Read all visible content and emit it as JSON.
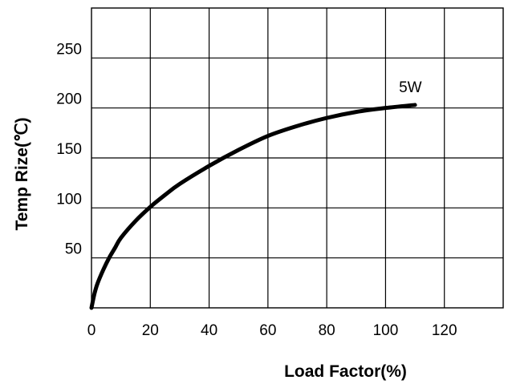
{
  "chart_data": {
    "type": "line",
    "title": "",
    "xlabel": "Load Factor(%)",
    "ylabel": "Temp Rize(℃)",
    "xlim": [
      0,
      140
    ],
    "ylim": [
      0,
      300
    ],
    "grid": true,
    "x_ticks": [
      0,
      20,
      40,
      60,
      80,
      100,
      120
    ],
    "x_tick_labels": [
      "0",
      "20",
      "40",
      "60",
      "80",
      "100",
      "120"
    ],
    "y_ticks": [
      50,
      100,
      150,
      200,
      250
    ],
    "y_tick_labels": [
      "50",
      "100",
      "150",
      "200",
      "250"
    ],
    "series": [
      {
        "name": "5W",
        "x": [
          0,
          1,
          2,
          4,
          6,
          8,
          10,
          15,
          20,
          25,
          30,
          40,
          50,
          60,
          70,
          80,
          90,
          100,
          110
        ],
        "y": [
          0,
          14,
          24,
          38,
          50,
          60,
          70,
          87,
          101,
          113,
          124,
          142,
          158,
          172,
          182,
          190,
          196,
          200,
          203
        ],
        "color": "#000000"
      }
    ]
  }
}
